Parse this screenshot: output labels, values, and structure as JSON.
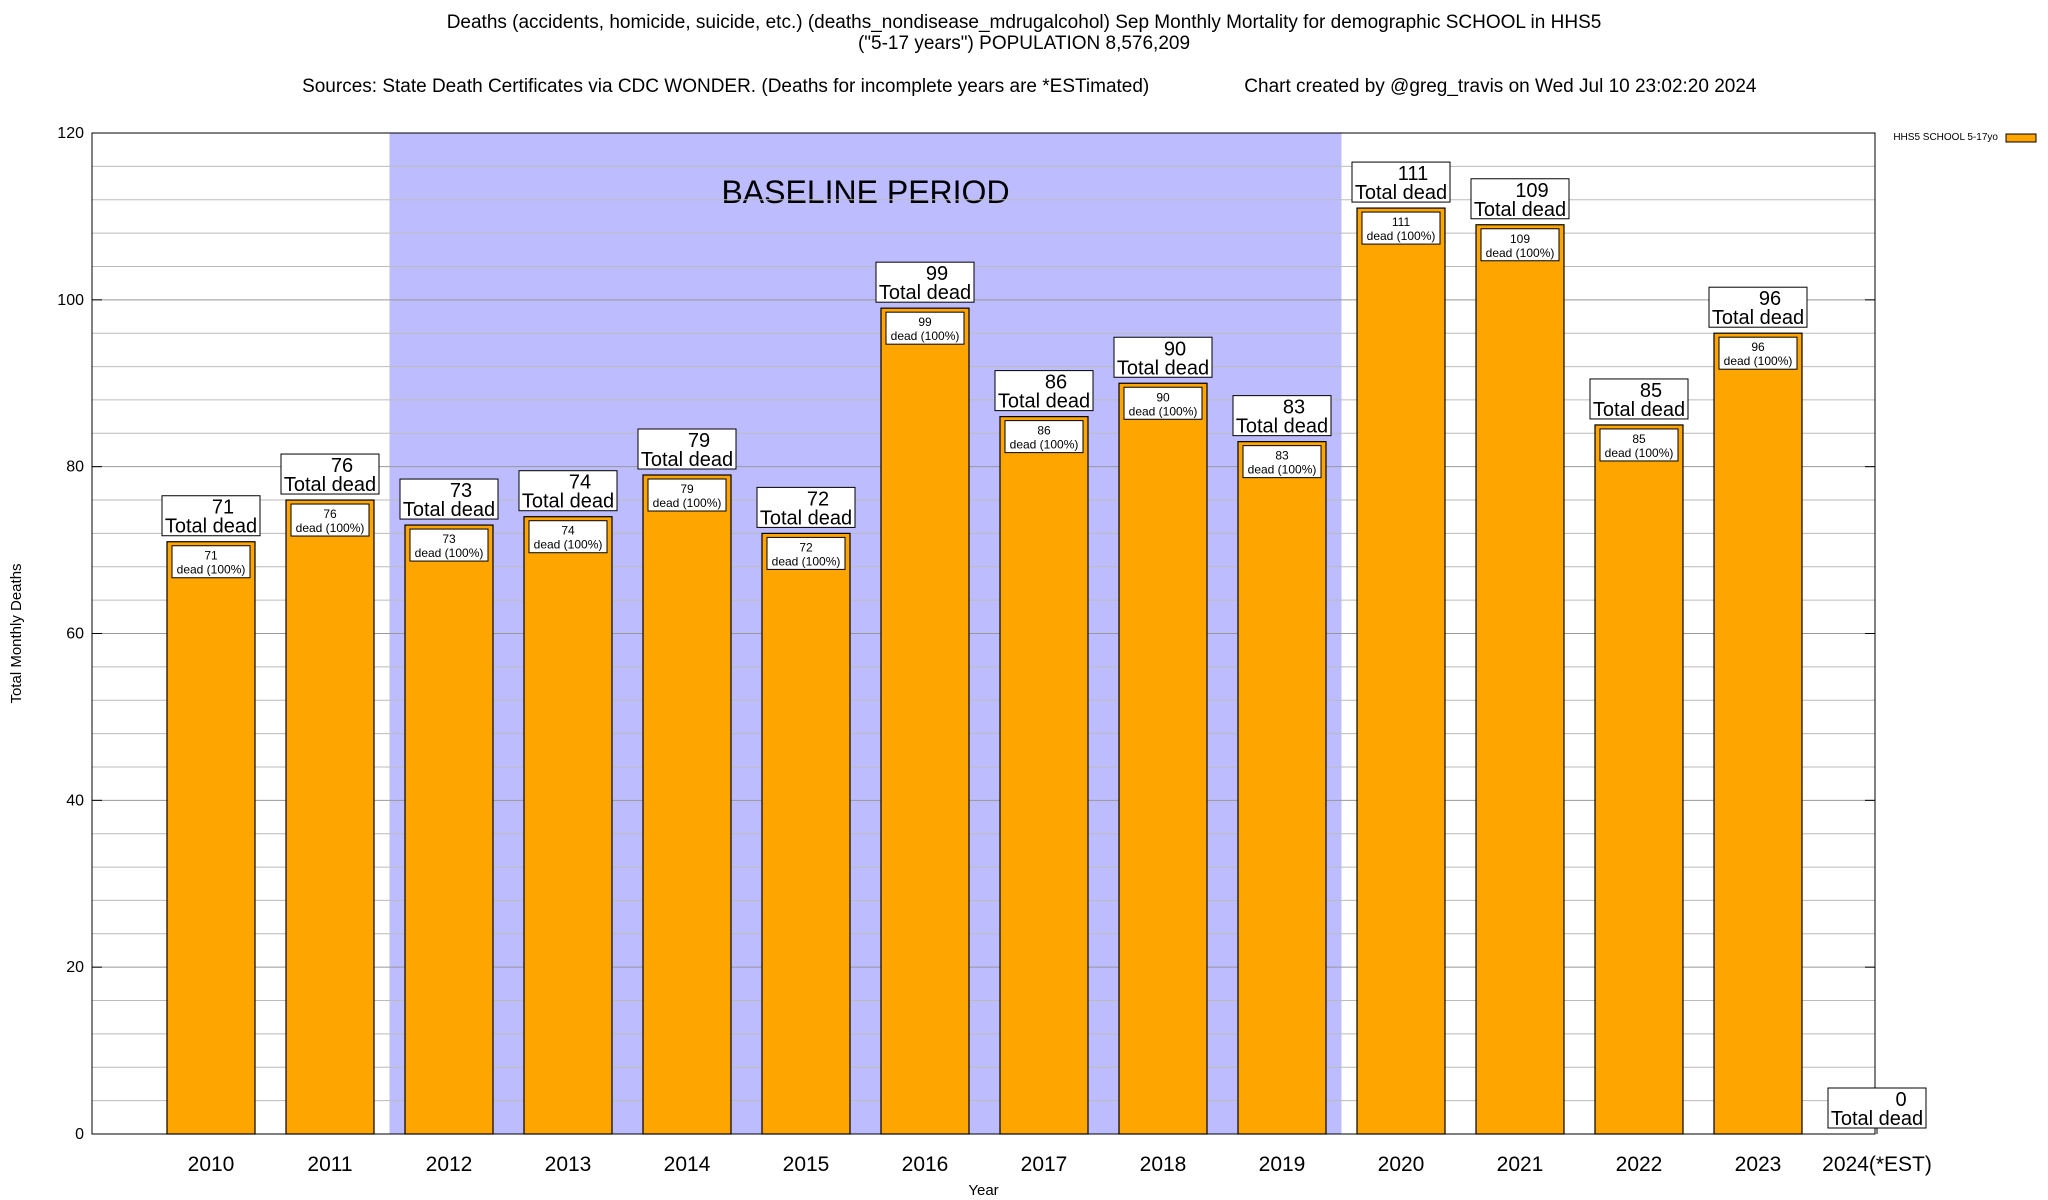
{
  "chart_data": {
    "type": "bar",
    "title": "Deaths (accidents, homicide, suicide, etc.) (deaths_nondisease_mdrugalcohol) Sep Monthly Mortality for demographic SCHOOL in HHS5",
    "subtitle": "(\"5-17 years\") POPULATION 8,576,209",
    "sources": "Sources: State Death Certificates via CDC WONDER. (Deaths for incomplete years are *ESTimated)",
    "credit": "Chart created by @greg_travis on Wed Jul 10 23:02:20 2024",
    "xlabel": "Year",
    "ylabel": "Total Monthly Deaths",
    "ylim": [
      0,
      120
    ],
    "yticks": [
      0,
      20,
      40,
      60,
      80,
      100,
      120
    ],
    "grid": true,
    "legend_position": "top-right",
    "baseline_label": "BASELINE PERIOD",
    "baseline_range": [
      "2012",
      "2019"
    ],
    "total_label": "Total dead",
    "categories": [
      "2010",
      "2011",
      "2012",
      "2013",
      "2014",
      "2015",
      "2016",
      "2017",
      "2018",
      "2019",
      "2020",
      "2021",
      "2022",
      "2023",
      "2024(*EST)"
    ],
    "series": [
      {
        "name": "HHS5 SCHOOL 5-17yo",
        "color": "#ffa500",
        "values": [
          71,
          76,
          73,
          74,
          79,
          72,
          99,
          86,
          90,
          83,
          111,
          109,
          85,
          96,
          0
        ],
        "inner_labels": [
          "dead (100%)",
          "dead (100%)",
          "dead (100%)",
          "dead (100%)",
          "dead (100%)",
          "dead (100%)",
          "dead (100%)",
          "dead (100%)",
          "dead (100%)",
          "dead (100%)",
          "dead (100%)",
          "dead (100%)",
          "dead (100%)",
          "dead (100%)",
          ""
        ]
      }
    ],
    "colors": {
      "bar": "#ffa500",
      "baseline": "#bcbcff",
      "grid": "#bbbbbb"
    }
  }
}
